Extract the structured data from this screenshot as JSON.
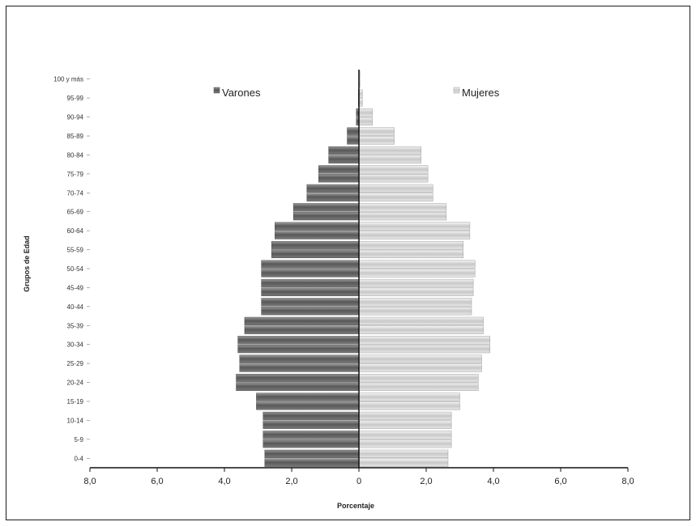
{
  "chart_data": {
    "type": "bar",
    "orientation": "horizontal",
    "categories": [
      "0-4",
      "5-9",
      "10-14",
      "15-19",
      "20-24",
      "25-29",
      "30-34",
      "35-39",
      "40-44",
      "45-49",
      "50-54",
      "55-59",
      "60-64",
      "65-69",
      "70-74",
      "75-79",
      "80-84",
      "85-89",
      "90-94",
      "95-99",
      "100 y más"
    ],
    "series": [
      {
        "name": "Varones",
        "values": [
          2.8,
          2.85,
          2.85,
          3.05,
          3.65,
          3.55,
          3.6,
          3.4,
          2.9,
          2.9,
          2.9,
          2.6,
          2.5,
          1.95,
          1.55,
          1.2,
          0.9,
          0.35,
          0.08,
          0.02,
          0.01
        ],
        "color": "#6e6e6e"
      },
      {
        "name": "Mujeres",
        "values": [
          2.65,
          2.75,
          2.75,
          3.0,
          3.55,
          3.65,
          3.9,
          3.7,
          3.35,
          3.4,
          3.45,
          3.1,
          3.3,
          2.6,
          2.2,
          2.05,
          1.85,
          1.05,
          0.4,
          0.1,
          0.03
        ],
        "color": "#e2e2e2"
      }
    ],
    "xlabel": "Porcentaje",
    "ylabel": "Grupos de Edad",
    "xlim": [
      -8,
      8
    ],
    "x_ticks": [
      "8,0",
      "6,0",
      "4,0",
      "2,0",
      "0",
      "2,0",
      "4,0",
      "6,0",
      "8,0"
    ],
    "grid": false,
    "legend": "inside-top"
  }
}
